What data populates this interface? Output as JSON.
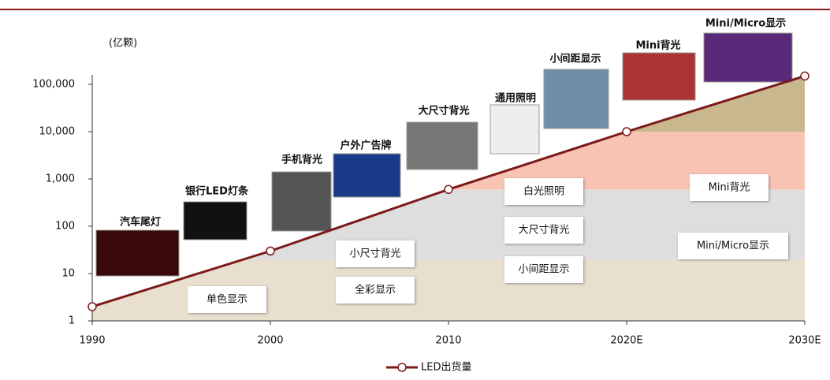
{
  "chart_data": {
    "type": "line",
    "y_label": "(亿颗)",
    "log_scale": true,
    "x": [
      1990,
      2000,
      2010,
      2020,
      2030
    ],
    "series": [
      {
        "name": "LED出货量",
        "color": "#7b1a1a",
        "values": [
          2,
          30,
          600,
          10000,
          150000
        ]
      }
    ],
    "xlim": [
      1990,
      2030
    ],
    "xticks": [
      1990,
      2000,
      2010,
      {
        "value": 2020,
        "label": "2020E"
      },
      {
        "value": 2030,
        "label": "2030E"
      }
    ],
    "ylim": [
      1,
      1000000
    ],
    "yticks": [
      1,
      10,
      100,
      {
        "value": 1000,
        "label": "1,000"
      },
      {
        "value": 10000,
        "label": "10,000"
      },
      {
        "value": 100000,
        "label": "100,000"
      }
    ],
    "bands": [
      {
        "from": 1,
        "to": 20,
        "color": "#e9dfcf"
      },
      {
        "from": 20,
        "to": 600,
        "color": "#dedede"
      },
      {
        "from": 600,
        "to": 10000,
        "color": "#f8c3b2"
      },
      {
        "from": 10000,
        "to": 150000,
        "color": "#c9b78e"
      }
    ],
    "band_labels": [
      "单色显示",
      "全彩显示",
      "小尺寸背光",
      "白光照明",
      "大尺寸背光",
      "小间距显示",
      "Mini背光",
      "Mini/Micro显示"
    ],
    "image_captions": [
      "汽车尾灯",
      "银行LED灯条",
      "手机背光",
      "户外广告牌",
      "大尺寸背光",
      "通用照明",
      "小间距显示",
      "Mini背光",
      "Mini/Micro显示"
    ]
  }
}
